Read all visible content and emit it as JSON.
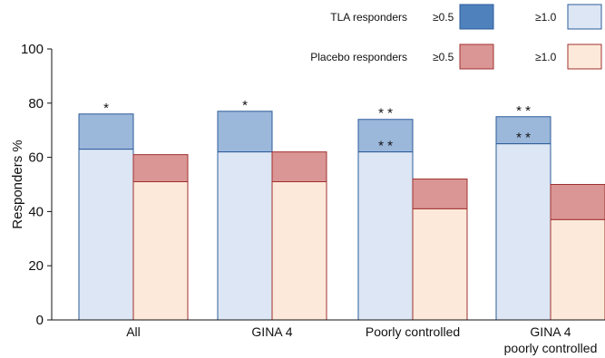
{
  "chart_data": {
    "type": "bar",
    "ylabel": "Responders  %",
    "ylim": [
      0,
      100
    ],
    "yticks": [
      0,
      20,
      40,
      60,
      80,
      100
    ],
    "categories": [
      {
        "lines": [
          "All"
        ]
      },
      {
        "lines": [
          "GINA 4"
        ]
      },
      {
        "lines": [
          "Poorly controlled"
        ]
      },
      {
        "lines": [
          "GINA 4",
          "poorly controlled"
        ]
      }
    ],
    "groups": [
      {
        "name": "TLA",
        "label": "TLA  responders",
        "stacked": [
          {
            "threshold": "≥1.0",
            "values": [
              63,
              62,
              62,
              65
            ],
            "color": "#dce6f4",
            "stroke": "#2e5c9a"
          },
          {
            "threshold": "≥0.5",
            "values": [
              76,
              77,
              74,
              75
            ],
            "color": "#9bb7da",
            "legend_color": "#4f81bd",
            "stroke": "#2e5c9a"
          }
        ],
        "annotations_top": [
          "*",
          "*",
          "* *",
          "* *"
        ],
        "annotations_inner": [
          "",
          "",
          "* *",
          "* *"
        ]
      },
      {
        "name": "Placebo",
        "label": "Placebo  responders",
        "stacked": [
          {
            "threshold": "≥1.0",
            "values": [
              51,
              51,
              41,
              37
            ],
            "color": "#fde9d9",
            "stroke": "#a03030"
          },
          {
            "threshold": "≥0.5",
            "values": [
              61,
              62,
              52,
              50
            ],
            "color": "#da9694",
            "legend_color": "#da9694",
            "stroke": "#a03030"
          }
        ],
        "annotations_top": [
          "",
          "",
          "",
          ""
        ],
        "annotations_inner": [
          "",
          "",
          "",
          ""
        ]
      }
    ],
    "legend": {
      "placement": "top-right",
      "rows": [
        {
          "label": "TLA  responders",
          "items": [
            {
              "threshold": "≥0.5",
              "color": "#4f81bd"
            },
            {
              "threshold": "≥1.0",
              "color": "#dce6f4"
            }
          ]
        },
        {
          "label": "Placebo  responders",
          "items": [
            {
              "threshold": "≥0.5",
              "color": "#da9694"
            },
            {
              "threshold": "≥1.0",
              "color": "#fde9d9"
            }
          ]
        }
      ]
    },
    "grid": false
  }
}
